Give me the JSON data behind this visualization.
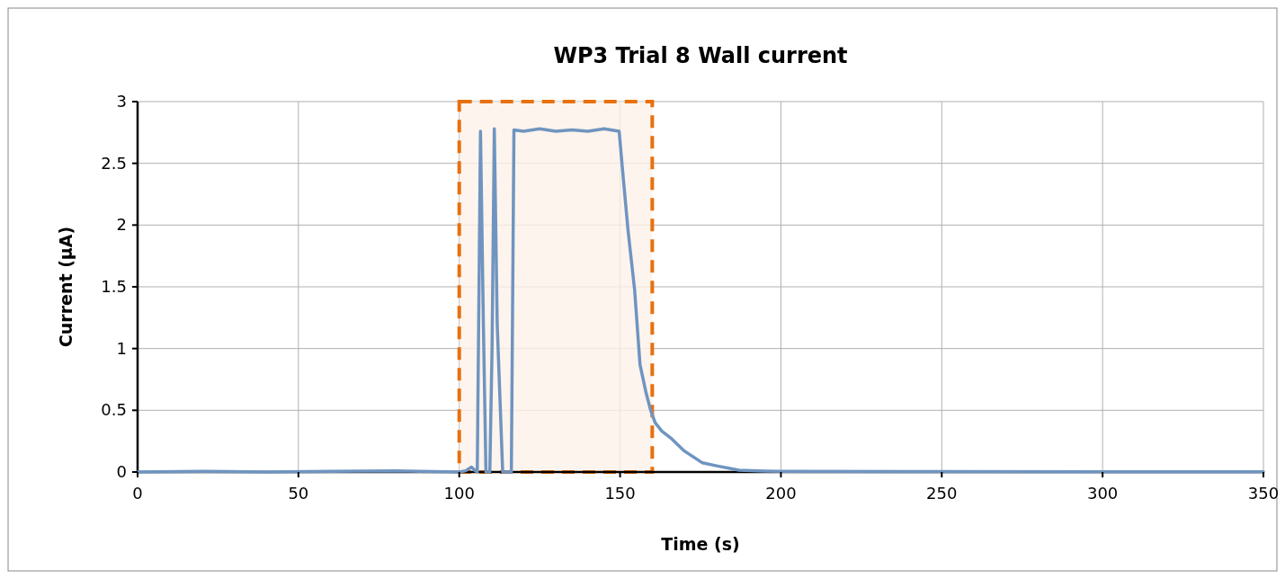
{
  "chart_data": {
    "type": "line",
    "title": "WP3 Trial 8 Wall current",
    "xlabel": "Time (s)",
    "ylabel": "Current (µA)",
    "xlim": [
      0,
      350
    ],
    "xticks": [
      0,
      50,
      100,
      150,
      200,
      250,
      300,
      350
    ],
    "ylim": [
      0,
      3
    ],
    "yticks": [
      0,
      0.5,
      1,
      1.5,
      2,
      2.5,
      3
    ],
    "grid": true,
    "bands": [
      {
        "axis": "x",
        "from": 100,
        "to": 160,
        "color": "#fdf1e9"
      }
    ],
    "series": [
      {
        "color": "#6f94c0",
        "x": [
          0,
          20,
          40,
          60,
          80,
          100,
          102,
          103.8,
          105,
          105.6,
          106.6,
          107.5,
          108.3,
          109.5,
          110.2,
          110.9,
          111.8,
          113.5,
          115.5,
          116.2,
          117,
          120,
          125,
          130,
          135,
          140,
          145,
          149.7,
          151.1,
          152.5,
          154.5,
          156.2,
          158,
          159.5,
          160.9,
          163,
          166,
          170,
          175.6,
          180,
          187,
          195,
          200,
          250,
          300,
          350
        ],
        "values": [
          0,
          0.005,
          0,
          0.005,
          0.01,
          0,
          0.01,
          0.04,
          0.01,
          0,
          2.76,
          1.2,
          0,
          0,
          1.0,
          2.78,
          1.2,
          0,
          0,
          0,
          2.77,
          2.76,
          2.78,
          2.76,
          2.77,
          2.76,
          2.78,
          2.76,
          2.35,
          1.95,
          1.48,
          0.87,
          0.65,
          0.5,
          0.4,
          0.33,
          0.27,
          0.17,
          0.074,
          0.05,
          0.015,
          0.008,
          0.005,
          0.003,
          0.002,
          0.002
        ]
      }
    ]
  }
}
